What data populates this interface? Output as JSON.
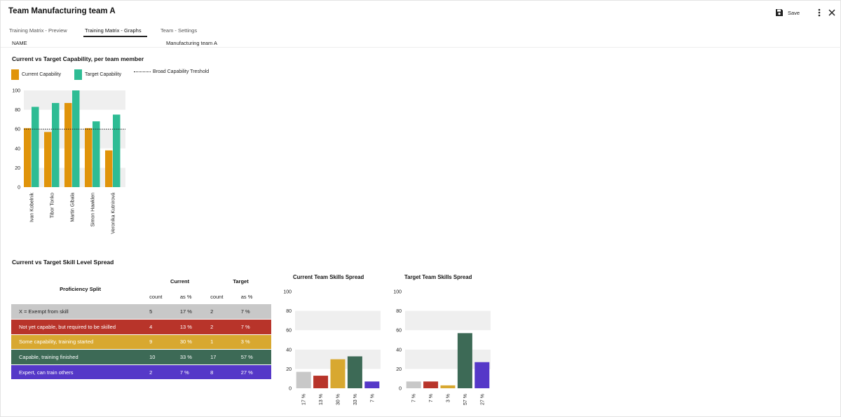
{
  "header": {
    "title": "Team Manufacturing team A",
    "save_label": "Save"
  },
  "tabs": [
    {
      "label": "Training Matrix - Preview",
      "active": false
    },
    {
      "label": "Training Matrix - Graphs",
      "active": true
    },
    {
      "label": "Team - Settings",
      "active": false
    }
  ],
  "name_row": {
    "label": "NAME",
    "value": "Manufacturing team A"
  },
  "capability_section": {
    "title": "Current vs Target Capability, per team member",
    "legend": {
      "current": "Current Capability",
      "target": "Target Capability",
      "threshold": "Broad Capability Treshold"
    }
  },
  "spread_section": {
    "title": "Current vs Target Skill Level Spread",
    "table": {
      "proficiency_header": "Proficiency Split",
      "current_header": "Current",
      "target_header": "Target",
      "count_label": "count",
      "pct_label": "as %",
      "rows": [
        {
          "label": "X = Exempt from skill",
          "cur_count": "5",
          "cur_pct": "17 %",
          "tgt_count": "2",
          "tgt_pct": "7 %"
        },
        {
          "label": "Not yet capable, but required to be skilled",
          "cur_count": "4",
          "cur_pct": "13 %",
          "tgt_count": "2",
          "tgt_pct": "7 %"
        },
        {
          "label": "Some capability, training started",
          "cur_count": "9",
          "cur_pct": "30 %",
          "tgt_count": "1",
          "tgt_pct": "3 %"
        },
        {
          "label": "Capable, training finished",
          "cur_count": "10",
          "cur_pct": "33 %",
          "tgt_count": "17",
          "tgt_pct": "57 %"
        },
        {
          "label": "Expert, can train others",
          "cur_count": "2",
          "cur_pct": "7 %",
          "tgt_count": "8",
          "tgt_pct": "27 %"
        }
      ]
    }
  },
  "colors": {
    "current": "#e0940a",
    "target": "#2ebc94",
    "band": "#efefef",
    "exempt": "#c8c8c8",
    "not_yet": "#b8342a",
    "some": "#d8a830",
    "capable": "#3d6a56",
    "expert": "#5538c8"
  },
  "chart_data": [
    {
      "type": "bar",
      "categories": [
        "Ivan Kobelnik",
        "Tibor Tonko",
        "Martin Gibala",
        "Simon Hawklen",
        "Veronika Kutnirová"
      ],
      "series": [
        {
          "name": "Current Capability",
          "values": [
            61,
            57,
            87,
            61,
            38
          ]
        },
        {
          "name": "Target Capability",
          "values": [
            83,
            87,
            100,
            68,
            75
          ]
        }
      ],
      "threshold": {
        "name": "Broad Capability Treshold",
        "value": 60
      },
      "ylim": [
        0,
        100
      ],
      "yticks": [
        0,
        20,
        40,
        60,
        80,
        100
      ],
      "grid": "alternating bands"
    },
    {
      "type": "bar",
      "title": "Current Team Skills Spread",
      "categories": [
        "17 %",
        "13 %",
        "30 %",
        "33 %",
        "7 %"
      ],
      "values": [
        17,
        13,
        30,
        33,
        7
      ],
      "ylim": [
        0,
        100
      ],
      "yticks": [
        0,
        20,
        40,
        60,
        80,
        100
      ]
    },
    {
      "type": "bar",
      "title": "Target Team Skills Spread",
      "categories": [
        "7 %",
        "7 %",
        "3 %",
        "57 %",
        "27 %"
      ],
      "values": [
        7,
        7,
        3,
        57,
        27
      ],
      "ylim": [
        0,
        100
      ],
      "yticks": [
        0,
        20,
        40,
        60,
        80,
        100
      ]
    }
  ]
}
